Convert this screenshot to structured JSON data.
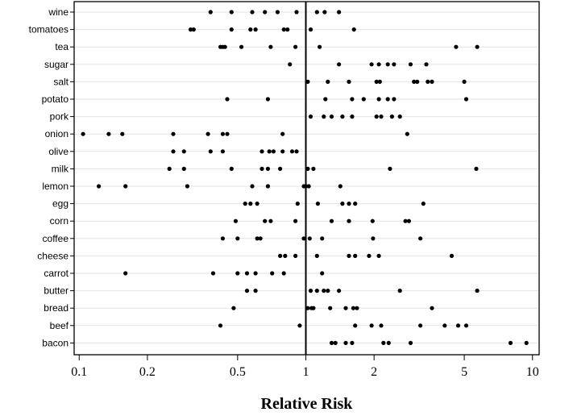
{
  "chart_data": {
    "type": "scatter",
    "x_scale": "log",
    "xlabel": "Relative Risk",
    "ylabel": "",
    "xlim": [
      0.095,
      10.7
    ],
    "x_ticks": [
      0.1,
      0.2,
      0.5,
      1,
      2,
      5,
      10
    ],
    "x_tick_labels": [
      "0.1",
      "0.2",
      "0.5",
      "1",
      "2",
      "5",
      "10"
    ],
    "reference_line_x": 1,
    "grid": "horizontal",
    "categories": [
      "wine",
      "tomatoes",
      "tea",
      "sugar",
      "salt",
      "potato",
      "pork",
      "onion",
      "olive",
      "milk",
      "lemon",
      "egg",
      "corn",
      "coffee",
      "cheese",
      "carrot",
      "butter",
      "bread",
      "beef",
      "bacon"
    ],
    "series": [
      {
        "category": "wine",
        "values": [
          0.38,
          0.47,
          0.58,
          0.66,
          0.75,
          0.91,
          1.12,
          1.21,
          1.4
        ]
      },
      {
        "category": "tomatoes",
        "values": [
          0.31,
          0.32,
          0.47,
          0.57,
          0.6,
          0.8,
          0.83,
          1.05,
          1.63
        ]
      },
      {
        "category": "tea",
        "values": [
          0.42,
          0.43,
          0.44,
          0.52,
          0.7,
          0.9,
          1.15,
          4.6,
          5.7
        ]
      },
      {
        "category": "sugar",
        "values": [
          0.85,
          1.4,
          1.95,
          2.1,
          2.3,
          2.45,
          2.9,
          3.4
        ]
      },
      {
        "category": "salt",
        "values": [
          1.02,
          1.25,
          1.55,
          2.05,
          2.12,
          3.0,
          3.1,
          3.45,
          3.6,
          5.0
        ]
      },
      {
        "category": "potato",
        "values": [
          0.45,
          0.68,
          1.22,
          1.6,
          1.8,
          2.1,
          2.3,
          2.45,
          5.1
        ]
      },
      {
        "category": "pork",
        "values": [
          1.05,
          1.2,
          1.3,
          1.45,
          1.6,
          2.05,
          2.15,
          2.4,
          2.6
        ]
      },
      {
        "category": "onion",
        "values": [
          0.104,
          0.135,
          0.155,
          0.26,
          0.37,
          0.43,
          0.45,
          0.79,
          2.8
        ]
      },
      {
        "category": "olive",
        "values": [
          0.26,
          0.29,
          0.38,
          0.43,
          0.64,
          0.69,
          0.72,
          0.79,
          0.87,
          0.91
        ]
      },
      {
        "category": "milk",
        "values": [
          0.25,
          0.29,
          0.47,
          0.64,
          0.68,
          0.77,
          1.02,
          1.08,
          2.35,
          5.65
        ]
      },
      {
        "category": "lemon",
        "values": [
          0.122,
          0.16,
          0.3,
          0.58,
          0.68,
          0.98,
          1.0,
          1.03,
          1.42
        ]
      },
      {
        "category": "egg",
        "values": [
          0.54,
          0.57,
          0.61,
          0.92,
          1.13,
          1.45,
          1.55,
          1.65,
          3.3
        ]
      },
      {
        "category": "corn",
        "values": [
          0.49,
          0.66,
          0.7,
          0.9,
          1.3,
          1.55,
          1.97,
          2.75,
          2.85
        ]
      },
      {
        "category": "coffee",
        "values": [
          0.43,
          0.5,
          0.61,
          0.63,
          0.98,
          1.04,
          1.18,
          1.98,
          3.2
        ]
      },
      {
        "category": "cheese",
        "values": [
          0.77,
          0.81,
          0.9,
          1.12,
          1.55,
          1.65,
          1.9,
          2.1,
          4.4
        ]
      },
      {
        "category": "carrot",
        "values": [
          0.16,
          0.39,
          0.5,
          0.55,
          0.6,
          0.71,
          0.8,
          1.18
        ]
      },
      {
        "category": "butter",
        "values": [
          0.55,
          0.6,
          1.05,
          1.12,
          1.2,
          1.25,
          1.4,
          2.6,
          5.7
        ]
      },
      {
        "category": "bread",
        "values": [
          0.48,
          1.02,
          1.06,
          1.08,
          1.28,
          1.5,
          1.62,
          1.68,
          3.6
        ]
      },
      {
        "category": "beef",
        "values": [
          0.42,
          0.94,
          1.65,
          1.95,
          2.15,
          3.2,
          4.1,
          4.7,
          5.1
        ]
      },
      {
        "category": "bacon",
        "values": [
          1.3,
          1.35,
          1.5,
          1.6,
          2.2,
          2.32,
          2.9,
          8.0,
          9.4
        ]
      }
    ]
  }
}
